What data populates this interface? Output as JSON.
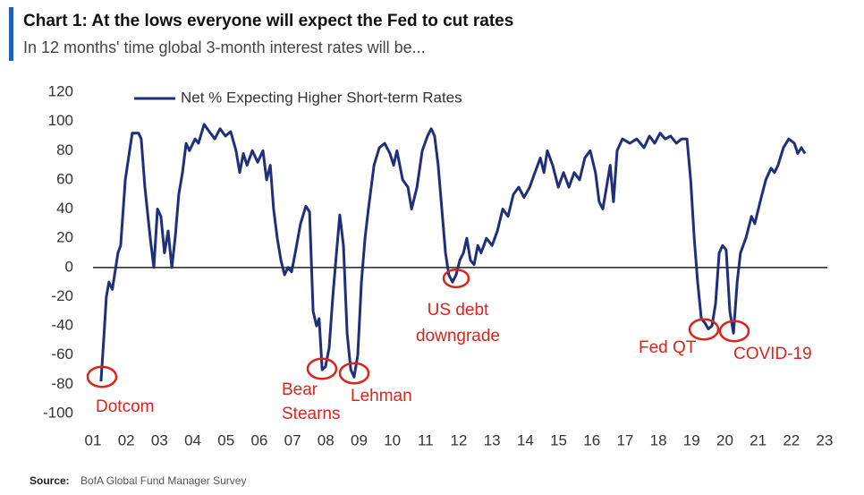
{
  "chart_data": {
    "type": "line",
    "title": "Chart 1: At the lows everyone will expect the Fed to cut rates",
    "subtitle": "In 12 months' time global 3-month interest rates will be...",
    "source_label": "Source:",
    "source": "BofA Global Fund Manager Survey",
    "x": [
      1.24,
      1.32,
      1.4,
      1.48,
      1.58,
      1.75,
      1.83,
      1.97,
      2.1,
      2.18,
      2.37,
      2.45,
      2.56,
      2.72,
      2.83,
      2.94,
      3.04,
      3.15,
      3.26,
      3.37,
      3.47,
      3.58,
      3.69,
      3.8,
      3.9,
      4.07,
      4.17,
      4.34,
      4.5,
      4.66,
      4.82,
      4.98,
      5.14,
      5.3,
      5.41,
      5.52,
      5.63,
      5.79,
      5.95,
      6.11,
      6.22,
      6.33,
      6.43,
      6.54,
      6.65,
      6.76,
      6.86,
      6.97,
      7.08,
      7.24,
      7.4,
      7.51,
      7.62,
      7.72,
      7.8,
      7.89,
      7.99,
      8.1,
      8.21,
      8.32,
      8.42,
      8.53,
      8.64,
      8.75,
      8.85,
      8.96,
      9.07,
      9.18,
      9.28,
      9.45,
      9.61,
      9.77,
      9.93,
      10.04,
      10.14,
      10.31,
      10.47,
      10.58,
      10.74,
      10.9,
      11.06,
      11.17,
      11.27,
      11.38,
      11.49,
      11.6,
      11.7,
      11.81,
      11.92,
      12.03,
      12.14,
      12.24,
      12.35,
      12.46,
      12.57,
      12.67,
      12.83,
      13.0,
      13.16,
      13.32,
      13.48,
      13.64,
      13.8,
      13.96,
      14.13,
      14.29,
      14.45,
      14.56,
      14.66,
      14.82,
      14.99,
      15.15,
      15.31,
      15.47,
      15.63,
      15.79,
      15.95,
      16.11,
      16.22,
      16.33,
      16.44,
      16.55,
      16.65,
      16.76,
      16.92,
      17.14,
      17.35,
      17.57,
      17.73,
      17.89,
      18.05,
      18.21,
      18.37,
      18.54,
      18.7,
      18.86,
      18.97,
      19.08,
      19.18,
      19.29,
      19.4,
      19.5,
      19.61,
      19.72,
      19.83,
      19.93,
      20.04,
      20.15,
      20.26,
      20.37,
      20.47,
      20.63,
      20.8,
      20.9,
      21.06,
      21.23,
      21.39,
      21.49,
      21.6,
      21.76,
      21.92,
      22.09,
      22.19,
      22.3,
      22.41
    ],
    "series": [
      {
        "name": "Net % Expecting Higher Short-term Rates",
        "color": "#1f2f7a",
        "values": [
          -78,
          -50,
          -20,
          -10,
          -15,
          10,
          15,
          60,
          80,
          92,
          92,
          88,
          55,
          20,
          0,
          40,
          35,
          10,
          25,
          0,
          20,
          50,
          65,
          85,
          80,
          88,
          85,
          98,
          93,
          88,
          95,
          90,
          93,
          80,
          65,
          78,
          70,
          80,
          72,
          80,
          60,
          70,
          40,
          20,
          5,
          -5,
          0,
          -3,
          10,
          30,
          42,
          38,
          -30,
          -40,
          -35,
          -70,
          -68,
          -55,
          -20,
          10,
          36,
          15,
          -45,
          -70,
          -75,
          -60,
          -10,
          20,
          40,
          70,
          82,
          85,
          78,
          70,
          80,
          60,
          55,
          40,
          55,
          80,
          90,
          95,
          90,
          70,
          40,
          10,
          -5,
          -10,
          -5,
          5,
          10,
          20,
          5,
          2,
          15,
          10,
          20,
          15,
          25,
          40,
          35,
          50,
          55,
          48,
          55,
          65,
          75,
          65,
          80,
          70,
          55,
          65,
          55,
          65,
          60,
          75,
          80,
          65,
          45,
          40,
          55,
          70,
          45,
          80,
          88,
          85,
          88,
          82,
          90,
          85,
          92,
          88,
          90,
          85,
          88,
          88,
          60,
          20,
          -10,
          -35,
          -38,
          -42,
          -40,
          -25,
          10,
          15,
          12,
          -30,
          -45,
          -10,
          10,
          20,
          35,
          30,
          45,
          60,
          68,
          65,
          70,
          82,
          88,
          85,
          78,
          82,
          78
        ]
      }
    ],
    "xlim": [
      1,
      23
    ],
    "xticks": [
      {
        "value": 1,
        "label": "01"
      },
      {
        "value": 2,
        "label": "02"
      },
      {
        "value": 3,
        "label": "03"
      },
      {
        "value": 4,
        "label": "04"
      },
      {
        "value": 5,
        "label": "05"
      },
      {
        "value": 6,
        "label": "06"
      },
      {
        "value": 7,
        "label": "07"
      },
      {
        "value": 8,
        "label": "08"
      },
      {
        "value": 9,
        "label": "09"
      },
      10,
      11,
      12,
      13,
      14,
      15,
      16,
      17,
      18,
      19,
      20,
      21,
      22,
      23
    ],
    "ylim": [
      -100,
      120
    ],
    "yticks": [
      -100,
      -80,
      -60,
      -40,
      -20,
      0,
      20,
      40,
      60,
      80,
      100,
      120
    ],
    "grid": false,
    "annotations": [
      {
        "text": [
          "Dotcom"
        ]
      },
      {
        "text": [
          "Bear",
          "Stearns"
        ]
      },
      {
        "text": [
          "Lehman"
        ]
      },
      {
        "text": [
          "US debt",
          "downgrade"
        ]
      },
      {
        "text": [
          "Fed QT"
        ]
      },
      {
        "text": [
          "COVID-19"
        ]
      }
    ]
  }
}
